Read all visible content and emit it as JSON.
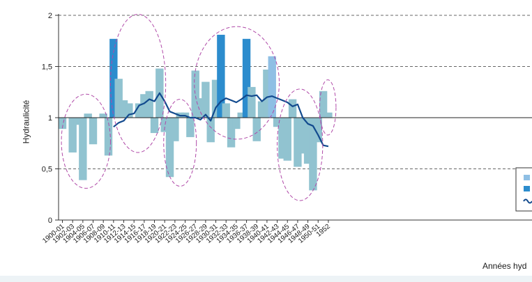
{
  "chart_data": {
    "type": "bar",
    "title": "",
    "ylabel": "Hydraulicité",
    "xlabel": "Années hyd",
    "ylim": [
      0,
      2
    ],
    "yticks": [
      "0",
      "0,5",
      "1",
      "1,5",
      "2"
    ],
    "baseline": 1,
    "grid": "dashed-horizontal",
    "colors": {
      "bar": "#91c3d0",
      "bar_wet": "#2c8ccd",
      "bar_highlight": "#8fbfe4",
      "line": "#124a8e",
      "ellipse": "#b04aa8"
    },
    "xticks": [
      "1900-01",
      "1902-03",
      "1904-05",
      "1906-07",
      "1908-09",
      "1910-11",
      "1912-13",
      "1914-15",
      "1916-17",
      "1918-19",
      "1920-21",
      "1922-23",
      "1924-25",
      "1926-27",
      "1928-29",
      "1930-31",
      "1932-33",
      "1934-35",
      "1936-37",
      "1938-39",
      "1940-41",
      "1942-43",
      "1944-45",
      "1946-47",
      "1948-49",
      "1950-51",
      "1952"
    ],
    "years": [
      1900,
      1901,
      1902,
      1903,
      1904,
      1905,
      1906,
      1907,
      1908,
      1909,
      1910,
      1911,
      1912,
      1913,
      1914,
      1915,
      1916,
      1917,
      1918,
      1919,
      1920,
      1921,
      1922,
      1923,
      1924,
      1925,
      1926,
      1927,
      1928,
      1929,
      1930,
      1931,
      1932,
      1933,
      1934,
      1935,
      1936,
      1937,
      1938,
      1939,
      1940,
      1941,
      1942,
      1943,
      1944,
      1945,
      1946,
      1947,
      1948,
      1949,
      1950,
      1951,
      1952
    ],
    "values": [
      0.89,
      1.0,
      0.66,
      0.93,
      0.39,
      1.04,
      0.74,
      1.0,
      1.04,
      0.63,
      1.77,
      1.38,
      1.17,
      1.14,
      1.0,
      1.14,
      1.23,
      1.26,
      0.85,
      1.48,
      0.86,
      0.42,
      0.77,
      1.05,
      1.05,
      0.81,
      1.46,
      1.19,
      1.35,
      0.76,
      1.37,
      1.81,
      1.14,
      0.71,
      0.89,
      1.05,
      1.77,
      1.3,
      0.77,
      1.16,
      1.47,
      1.6,
      0.91,
      0.6,
      0.58,
      1.18,
      0.52,
      0.65,
      0.55,
      0.29,
      0.76,
      1.26,
      1.05
    ],
    "highlight": {
      "1910": "bar_wet",
      "1931": "bar_wet",
      "1936": "bar_wet",
      "1941": "bar_highlight"
    },
    "moving_average": {
      "years": [
        1910,
        1911,
        1912,
        1913,
        1914,
        1915,
        1916,
        1917,
        1918,
        1919,
        1920,
        1921,
        1922,
        1923,
        1924,
        1925,
        1926,
        1927,
        1928,
        1929,
        1930,
        1931,
        1932,
        1933,
        1934,
        1935,
        1936,
        1937,
        1938,
        1939,
        1940,
        1941,
        1942,
        1943,
        1944,
        1945,
        1946,
        1947,
        1948,
        1949,
        1950,
        1951,
        1952
      ],
      "values": [
        0.91,
        0.95,
        0.97,
        1.03,
        1.04,
        1.12,
        1.14,
        1.18,
        1.16,
        1.24,
        1.16,
        1.06,
        1.04,
        1.02,
        1.02,
        1.0,
        1.0,
        0.98,
        1.03,
        0.97,
        1.1,
        1.16,
        1.19,
        1.17,
        1.15,
        1.18,
        1.22,
        1.21,
        1.22,
        1.16,
        1.2,
        1.21,
        1.19,
        1.17,
        1.15,
        1.11,
        1.13,
        1.0,
        0.94,
        0.92,
        0.83,
        0.73,
        0.72
      ]
    },
    "ellipses": [
      {
        "from": 1899.8,
        "to": 1909.4,
        "ymin": 0.31,
        "ymax": 1.23
      },
      {
        "from": 1909.4,
        "to": 1920.2,
        "ymin": 0.66,
        "ymax": 2.01
      },
      {
        "from": 1919.8,
        "to": 1926.2,
        "ymin": 0.33,
        "ymax": 1.18
      },
      {
        "from": 1925.8,
        "to": 1942.4,
        "ymin": 0.79,
        "ymax": 1.89
      },
      {
        "from": 1942.0,
        "to": 1950.9,
        "ymin": 0.19,
        "ymax": 1.28
      },
      {
        "from": 1950.3,
        "to": 1953.5,
        "ymin": 0.83,
        "ymax": 1.37
      }
    ],
    "legend": {
      "placement": "right",
      "clipped": true
    }
  }
}
